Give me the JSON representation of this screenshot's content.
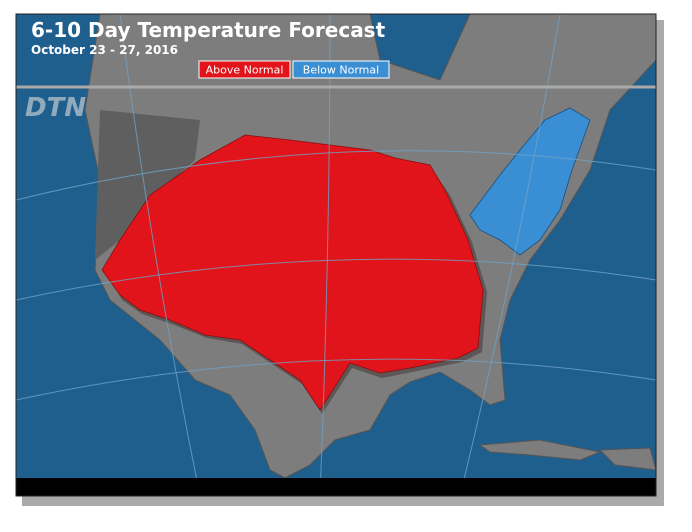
{
  "header": {
    "title": "6-10 Day Temperature Forecast",
    "subtitle": "October 23 - 27, 2016"
  },
  "legend": {
    "items": [
      "Above Normal",
      "Below Normal"
    ]
  },
  "logo": "DTN"
}
